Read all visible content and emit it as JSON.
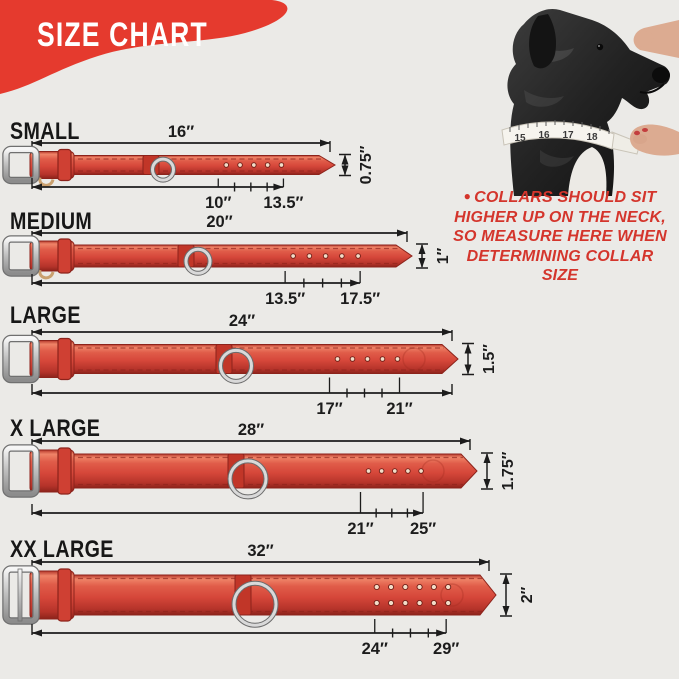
{
  "title": "SIZE CHART",
  "note": {
    "bullet": "●",
    "lines": [
      "COLLARS SHOULD SIT",
      "HIGHER UP ON THE NECK,",
      "SO MEASURE HERE WHEN",
      "DETERMINING COLLAR",
      "SIZE"
    ]
  },
  "dog": {
    "tape_numbers": [
      "15",
      "16",
      "17",
      "18"
    ]
  },
  "colors": {
    "background": "#ebeae7",
    "banner_red": "#e53a2e",
    "collar_red": "#d6473a",
    "note_red": "#d4352c",
    "dim_color": "#1c1c1c"
  },
  "sizes": [
    {
      "name": "SMALL",
      "length_label": "16″",
      "width_label": "0.75″",
      "min_label": "10″",
      "max_label": "13.5″",
      "total_in": 16,
      "min_in": 10,
      "max_in": 13.5
    },
    {
      "name": "MEDIUM",
      "length_label": "20″",
      "width_label": "1″",
      "min_label": "13.5″",
      "max_label": "17.5″",
      "total_in": 20,
      "min_in": 13.5,
      "max_in": 17.5
    },
    {
      "name": "LARGE",
      "length_label": "24″",
      "width_label": "1.5″",
      "min_label": "17″",
      "max_label": "21″",
      "total_in": 24,
      "min_in": 17,
      "max_in": 21
    },
    {
      "name": "X LARGE",
      "length_label": "28″",
      "width_label": "1.75″",
      "min_label": "21″",
      "max_label": "25″",
      "total_in": 28,
      "min_in": 21,
      "max_in": 25
    },
    {
      "name": "XX LARGE",
      "length_label": "32″",
      "width_label": "2″",
      "min_label": "24″",
      "max_label": "29″",
      "total_in": 32,
      "min_in": 24,
      "max_in": 29
    }
  ]
}
